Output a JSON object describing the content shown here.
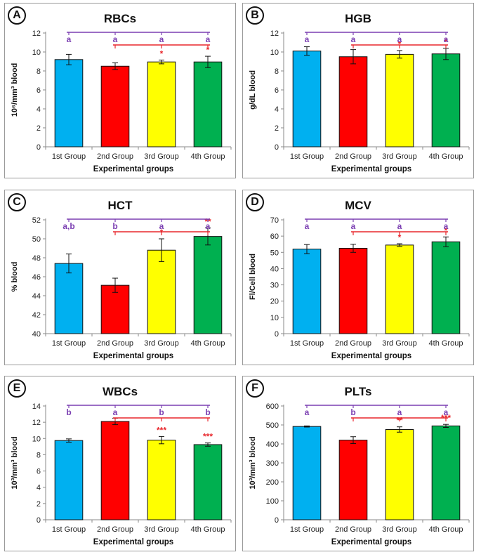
{
  "xlabel": "Experimental groups",
  "colors": {
    "bars": [
      "#00b0f0",
      "#ff0000",
      "#ffff00",
      "#00b050"
    ],
    "purple": "#7b3fb2",
    "red": "#e8262b"
  },
  "chart_data": [
    {
      "panel": "A",
      "type": "bar",
      "title": "RBCs",
      "ylabel": "10⁶/mm³ blood",
      "xlabel": "Experimental groups",
      "categories": [
        "1st Group",
        "2nd Group",
        "3rd Group",
        "4th Group"
      ],
      "values": [
        9.2,
        8.5,
        8.95,
        8.95
      ],
      "errors": [
        0.55,
        0.35,
        0.2,
        0.6
      ],
      "ylim": [
        0,
        12
      ],
      "yticks": [
        0,
        2,
        4,
        6,
        8,
        10,
        12
      ],
      "letters": [
        "a",
        "a",
        "a",
        "a"
      ],
      "stars": [
        "",
        "",
        "*",
        "*"
      ],
      "red_bracket_from": 1
    },
    {
      "panel": "B",
      "type": "bar",
      "title": "HGB",
      "ylabel": "g/dL blood",
      "xlabel": "Experimental groups",
      "categories": [
        "1st Group",
        "2nd Group",
        "3rd Group",
        "4th Group"
      ],
      "values": [
        10.1,
        9.5,
        9.75,
        9.8
      ],
      "errors": [
        0.45,
        0.75,
        0.4,
        0.6
      ],
      "ylim": [
        0,
        12
      ],
      "yticks": [
        0,
        2,
        4,
        6,
        8,
        10,
        12
      ],
      "letters": [
        "a",
        "a",
        "a",
        "a"
      ],
      "stars": [
        "",
        "",
        "*",
        "*"
      ],
      "red_bracket_from": 1
    },
    {
      "panel": "C",
      "type": "bar",
      "title": "HCT",
      "ylabel": "% blood",
      "xlabel": "Experimental groups",
      "categories": [
        "1st Group",
        "2nd Group",
        "3rd Group",
        "4th Group"
      ],
      "values": [
        47.4,
        45.1,
        48.8,
        50.25
      ],
      "errors": [
        1.0,
        0.75,
        1.2,
        0.9
      ],
      "ylim": [
        40,
        52
      ],
      "yticks": [
        40,
        42,
        44,
        46,
        48,
        50,
        52
      ],
      "letters": [
        "a,b",
        "b",
        "a",
        "a"
      ],
      "stars": [
        "",
        "",
        "*",
        "**"
      ],
      "red_bracket_from": 1
    },
    {
      "panel": "D",
      "type": "bar",
      "title": "MCV",
      "ylabel": "Fl/Cell blood",
      "xlabel": "Experimental groups",
      "categories": [
        "1st Group",
        "2nd Group",
        "3rd Group",
        "4th Group"
      ],
      "values": [
        52,
        52.5,
        54.5,
        56.5
      ],
      "errors": [
        2.8,
        2.5,
        0.8,
        3.0
      ],
      "ylim": [
        0,
        70
      ],
      "yticks": [
        0,
        10,
        20,
        30,
        40,
        50,
        60,
        70
      ],
      "letters": [
        "a",
        "a",
        "a",
        "a"
      ],
      "stars": [
        "",
        "",
        "*",
        "*"
      ],
      "red_bracket_from": 1
    },
    {
      "panel": "E",
      "type": "bar",
      "title": "WBCs",
      "ylabel": "10³/mm³ blood",
      "xlabel": "Experimental groups",
      "categories": [
        "1st Group",
        "2nd Group",
        "3rd Group",
        "4th Group"
      ],
      "values": [
        9.75,
        12.1,
        9.8,
        9.25
      ],
      "errors": [
        0.2,
        0.4,
        0.45,
        0.2
      ],
      "ylim": [
        0,
        14
      ],
      "yticks": [
        0,
        2,
        4,
        6,
        8,
        10,
        12,
        14
      ],
      "letters": [
        "b",
        "a",
        "b",
        "b"
      ],
      "stars": [
        "",
        "",
        "***",
        "***"
      ],
      "red_bracket_from": 1
    },
    {
      "panel": "F",
      "type": "bar",
      "title": "PLTs",
      "ylabel": "10³/mm³ blood",
      "xlabel": "Experimental groups",
      "categories": [
        "1st Group",
        "2nd Group",
        "3rd Group",
        "4th Group"
      ],
      "values": [
        492,
        420,
        476,
        495
      ],
      "errors": [
        3,
        18,
        14,
        8
      ],
      "ylim": [
        0,
        600
      ],
      "yticks": [
        0,
        100,
        200,
        300,
        400,
        500,
        600
      ],
      "letters": [
        "a",
        "b",
        "a",
        "a"
      ],
      "stars": [
        "",
        "",
        "**",
        "***"
      ],
      "red_bracket_from": 1
    }
  ]
}
